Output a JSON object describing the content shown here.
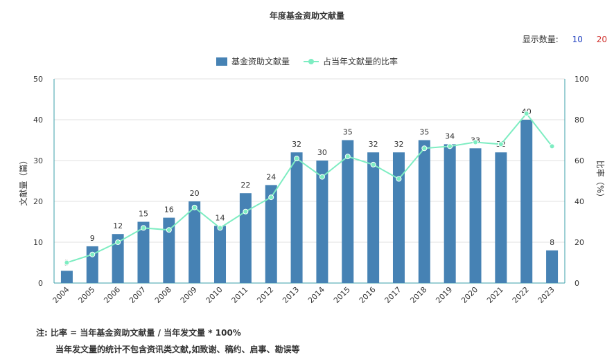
{
  "title": "年度基金资助文献量",
  "display_count": {
    "label": "显示数量:",
    "options": [
      "10",
      "20"
    ]
  },
  "legend": {
    "bar_label": "基金资助文献量",
    "line_label": "占当年文献量的比率"
  },
  "notes": {
    "line1": "注:  比率 = 当年基金资助文献量 / 当年发文量 * 100%",
    "line2": "当年发文量的统计不包含资讯类文献,如致谢、稿约、启事、勘误等"
  },
  "chart_data": {
    "type": "bar",
    "title": "年度基金资助文献量",
    "categories": [
      "2004",
      "2005",
      "2006",
      "2007",
      "2008",
      "2009",
      "2010",
      "2011",
      "2012",
      "2013",
      "2014",
      "2015",
      "2016",
      "2017",
      "2018",
      "2019",
      "2020",
      "2021",
      "2022",
      "2023"
    ],
    "series": [
      {
        "name": "基金资助文献量",
        "type": "bar",
        "axis": "left",
        "color": "#4682b4",
        "values": [
          3,
          9,
          12,
          15,
          16,
          20,
          14,
          22,
          24,
          32,
          30,
          35,
          32,
          32,
          35,
          34,
          33,
          32,
          40,
          8
        ]
      },
      {
        "name": "占当年文献量的比率",
        "type": "line",
        "axis": "right",
        "color": "#7eedc2",
        "values": [
          10,
          14,
          20,
          27,
          26,
          37,
          27,
          35,
          42,
          61,
          52,
          62,
          58,
          51,
          66,
          67,
          69,
          68,
          83,
          67
        ]
      }
    ],
    "ylabel": "文献量（篇）",
    "y2label": "比率（%）",
    "ylim": [
      0,
      50
    ],
    "y2lim": [
      0,
      100
    ],
    "yticks": [
      "0",
      "10",
      "20",
      "30",
      "40",
      "50"
    ],
    "y2ticks": [
      "0",
      "20",
      "40",
      "60",
      "80",
      "100"
    ],
    "grid": true,
    "legend_position": "top-center"
  }
}
